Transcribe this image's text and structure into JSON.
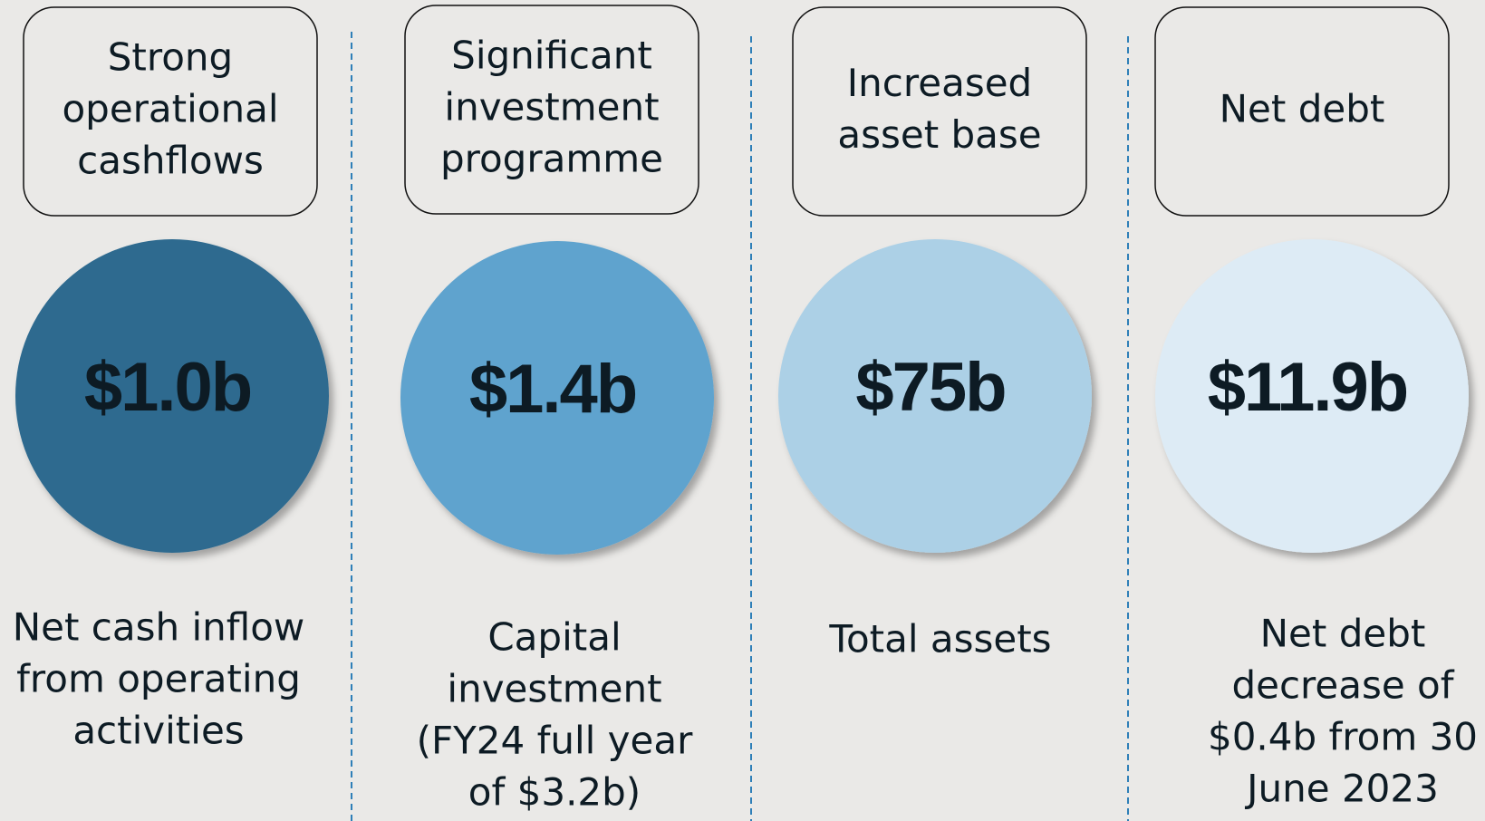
{
  "columns": [
    {
      "header": [
        "Strong",
        "operational",
        "cashflows"
      ],
      "value": "$1.0b",
      "description": [
        "Net cash inflow",
        "from operating",
        "activities"
      ]
    },
    {
      "header": [
        "Significant",
        "investment",
        "programme"
      ],
      "value": "$1.4b",
      "description": [
        "Capital",
        "investment",
        "(FY24 full year",
        "of $3.2b)"
      ]
    },
    {
      "header": [
        "Increased",
        "asset base"
      ],
      "value": "$75b",
      "description": [
        "Total assets"
      ]
    },
    {
      "header": [
        "Net debt"
      ],
      "value": "$11.9b",
      "description": [
        "Net debt",
        "decrease of",
        "$0.4b from 30",
        "June 2023"
      ]
    }
  ]
}
